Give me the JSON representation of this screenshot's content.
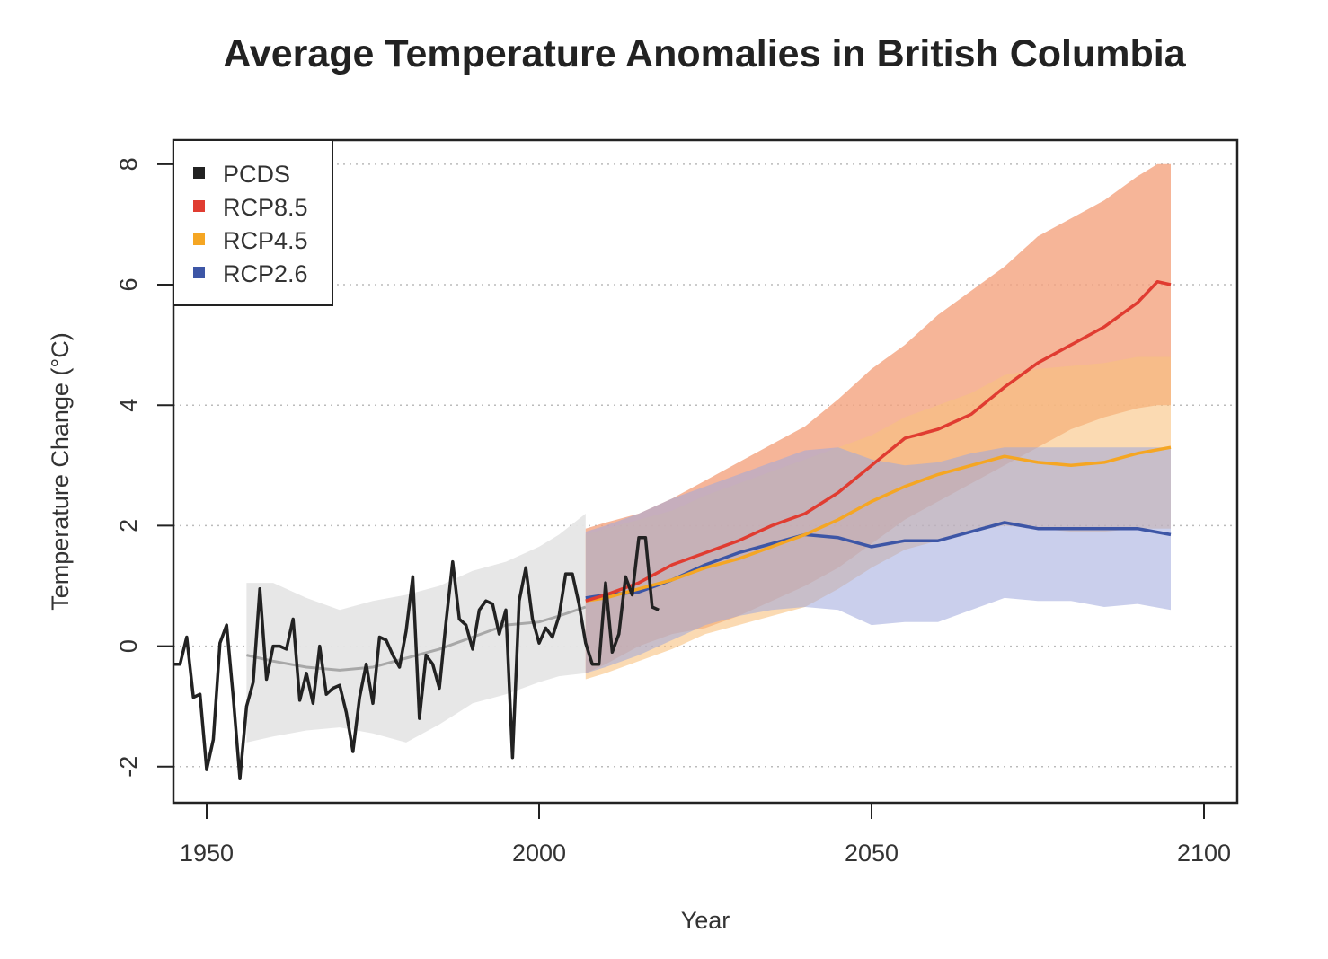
{
  "chart_data": {
    "type": "line",
    "title": "Average Temperature Anomalies in British Columbia",
    "xlabel": "Year",
    "ylabel": "Temperature Change (°C)",
    "xlim": [
      1945,
      2105
    ],
    "ylim": [
      -2.6,
      8.4
    ],
    "x_ticks": [
      1950,
      2000,
      2050,
      2100
    ],
    "y_ticks": [
      -2,
      0,
      2,
      4,
      6,
      8
    ],
    "grid": "horizontal dotted",
    "legend_position": "top-left",
    "colors": {
      "PCDS": "#222222",
      "RCP8.5": "#e03c31",
      "RCP4.5": "#f5a623",
      "RCP2.6": "#3d56a6",
      "historical_band": "#e6e6e6",
      "historical_mean": "#a8a8a8",
      "band_rcp85": "#f4a27e",
      "band_rcp45": "#f8c27e",
      "band_rcp26": "#9fa7dd"
    },
    "series": [
      {
        "name": "PCDS",
        "x": [
          1945,
          1946,
          1947,
          1948,
          1949,
          1950,
          1951,
          1952,
          1953,
          1954,
          1955,
          1956,
          1957,
          1958,
          1959,
          1960,
          1961,
          1962,
          1963,
          1964,
          1965,
          1966,
          1967,
          1968,
          1969,
          1970,
          1971,
          1972,
          1973,
          1974,
          1975,
          1976,
          1977,
          1978,
          1979,
          1980,
          1981,
          1982,
          1983,
          1984,
          1985,
          1986,
          1987,
          1988,
          1989,
          1990,
          1991,
          1992,
          1993,
          1994,
          1995,
          1996,
          1997,
          1998,
          1999,
          2000,
          2001,
          2002,
          2003,
          2004,
          2005,
          2006,
          2007,
          2008,
          2009,
          2010,
          2011,
          2012,
          2013,
          2014,
          2015,
          2016,
          2017,
          2018
        ],
        "values": [
          -0.3,
          -0.3,
          0.15,
          -0.85,
          -0.8,
          -2.05,
          -1.55,
          0.05,
          0.35,
          -0.85,
          -2.2,
          -1.0,
          -0.6,
          0.95,
          -0.55,
          0.0,
          0.0,
          -0.05,
          0.45,
          -0.9,
          -0.45,
          -0.95,
          0.0,
          -0.8,
          -0.7,
          -0.65,
          -1.1,
          -1.75,
          -0.85,
          -0.3,
          -0.95,
          0.15,
          0.1,
          -0.15,
          -0.35,
          0.25,
          1.15,
          -1.2,
          -0.15,
          -0.3,
          -0.7,
          0.4,
          1.4,
          0.45,
          0.35,
          -0.05,
          0.6,
          0.75,
          0.7,
          0.2,
          0.6,
          -1.85,
          0.75,
          1.3,
          0.45,
          0.05,
          0.3,
          0.15,
          0.5,
          1.2,
          1.2,
          0.7,
          0.05,
          -0.3,
          -0.3,
          1.05,
          -0.1,
          0.2,
          1.15,
          0.85,
          1.8,
          1.8,
          0.65,
          0.6
        ]
      },
      {
        "name": "RCP8.5",
        "x": [
          2007,
          2010,
          2015,
          2020,
          2025,
          2030,
          2035,
          2040,
          2045,
          2050,
          2055,
          2060,
          2065,
          2070,
          2075,
          2080,
          2085,
          2090,
          2093,
          2095
        ],
        "values": [
          0.75,
          0.85,
          1.05,
          1.35,
          1.55,
          1.75,
          2.0,
          2.2,
          2.55,
          3.0,
          3.45,
          3.6,
          3.85,
          4.3,
          4.7,
          5.0,
          5.3,
          5.7,
          6.05,
          6.0
        ],
        "band_low": [
          -0.45,
          -0.3,
          0.0,
          0.2,
          0.3,
          0.5,
          0.75,
          1.0,
          1.3,
          1.7,
          2.1,
          2.4,
          2.7,
          3.0,
          3.3,
          3.6,
          3.8,
          3.95,
          4.0,
          4.0
        ],
        "band_high": [
          1.95,
          2.05,
          2.2,
          2.45,
          2.75,
          3.05,
          3.35,
          3.65,
          4.1,
          4.6,
          5.0,
          5.5,
          5.9,
          6.3,
          6.8,
          7.1,
          7.4,
          7.8,
          8.0,
          8.0
        ]
      },
      {
        "name": "RCP4.5",
        "x": [
          2007,
          2010,
          2015,
          2020,
          2025,
          2030,
          2035,
          2040,
          2045,
          2050,
          2055,
          2060,
          2065,
          2070,
          2075,
          2080,
          2085,
          2090,
          2095
        ],
        "values": [
          0.75,
          0.8,
          0.95,
          1.1,
          1.3,
          1.45,
          1.65,
          1.85,
          2.1,
          2.4,
          2.65,
          2.85,
          3.0,
          3.15,
          3.05,
          3.0,
          3.05,
          3.2,
          3.3
        ],
        "band_low": [
          -0.55,
          -0.45,
          -0.25,
          -0.05,
          0.2,
          0.35,
          0.5,
          0.65,
          0.95,
          1.3,
          1.6,
          1.75,
          1.9,
          2.0,
          1.95,
          1.9,
          1.9,
          1.95,
          1.95
        ],
        "band_high": [
          1.85,
          1.95,
          2.1,
          2.25,
          2.5,
          2.7,
          2.9,
          3.1,
          3.3,
          3.5,
          3.8,
          4.0,
          4.2,
          4.5,
          4.6,
          4.65,
          4.7,
          4.8,
          4.8
        ]
      },
      {
        "name": "RCP2.6",
        "x": [
          2007,
          2010,
          2015,
          2020,
          2025,
          2030,
          2035,
          2040,
          2045,
          2050,
          2055,
          2060,
          2065,
          2070,
          2075,
          2080,
          2085,
          2090,
          2095
        ],
        "values": [
          0.8,
          0.85,
          0.9,
          1.1,
          1.35,
          1.55,
          1.7,
          1.85,
          1.8,
          1.65,
          1.75,
          1.75,
          1.9,
          2.05,
          1.95,
          1.95,
          1.95,
          1.95,
          1.85
        ],
        "band_low": [
          -0.45,
          -0.35,
          -0.15,
          0.1,
          0.35,
          0.5,
          0.6,
          0.65,
          0.6,
          0.35,
          0.4,
          0.4,
          0.6,
          0.8,
          0.75,
          0.75,
          0.65,
          0.7,
          0.6
        ],
        "band_high": [
          1.9,
          2.0,
          2.2,
          2.45,
          2.65,
          2.85,
          3.05,
          3.25,
          3.3,
          3.1,
          3.0,
          3.05,
          3.2,
          3.3,
          3.3,
          3.3,
          3.3,
          3.3,
          3.3
        ]
      },
      {
        "x": [
          1956,
          1960,
          1965,
          1970,
          1975,
          1980,
          1985,
          1990,
          1995,
          2000,
          2003,
          2007
        ],
        "values": [
          -0.15,
          -0.25,
          -0.35,
          -0.4,
          -0.35,
          -0.2,
          -0.05,
          0.15,
          0.35,
          0.4,
          0.5,
          0.65
        ],
        "band_low": [
          -1.6,
          -1.5,
          -1.4,
          -1.35,
          -1.45,
          -1.6,
          -1.3,
          -0.95,
          -0.8,
          -0.6,
          -0.5,
          -0.45
        ],
        "band_high": [
          1.05,
          1.05,
          0.8,
          0.6,
          0.75,
          0.85,
          1.0,
          1.25,
          1.4,
          1.65,
          1.85,
          2.2
        ]
      }
    ],
    "legend": [
      "PCDS",
      "RCP8.5",
      "RCP4.5",
      "RCP2.6"
    ]
  }
}
